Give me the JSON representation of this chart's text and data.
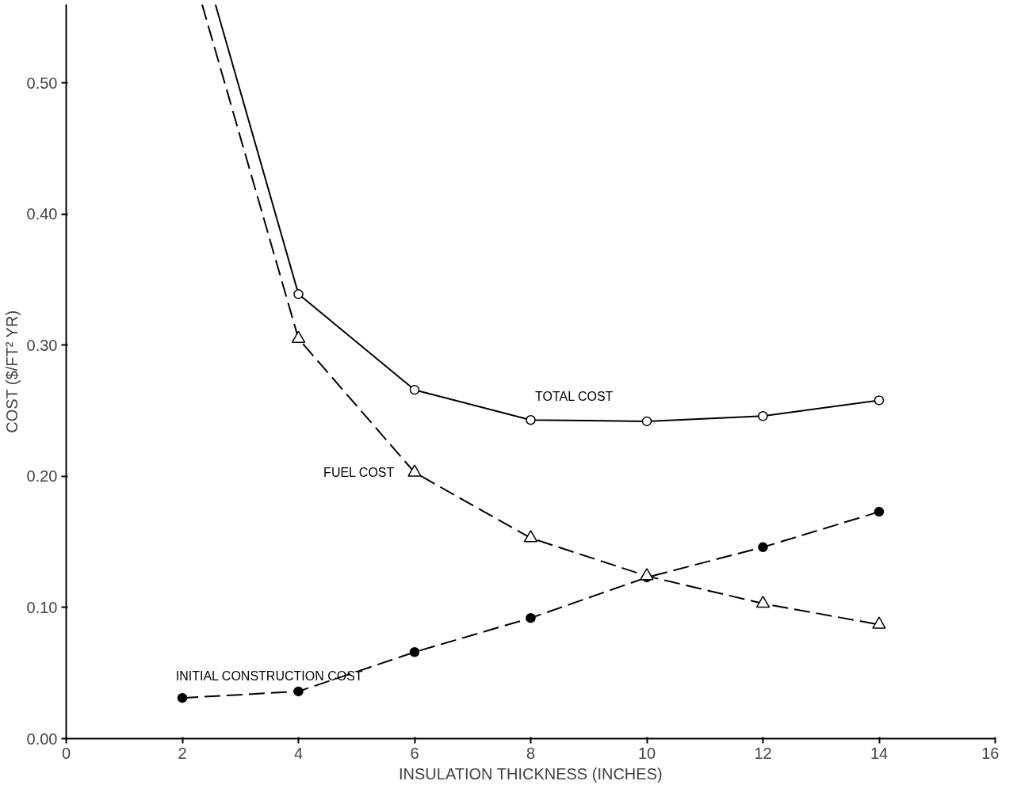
{
  "chart_data": {
    "type": "line",
    "xlabel": "INSULATION THICKNESS (INCHES)",
    "ylabel": "COST ($/FT² YR)",
    "xlim": [
      0,
      16
    ],
    "ylim": [
      0,
      0.56
    ],
    "xticks": [
      0,
      2,
      4,
      6,
      8,
      10,
      12,
      14,
      16
    ],
    "yticks": [
      {
        "value": 0,
        "label": "0.00"
      },
      {
        "value": 0.1,
        "label": "0.10"
      },
      {
        "value": 0.2,
        "label": "0.20"
      },
      {
        "value": 0.3,
        "label": "0.30"
      },
      {
        "value": 0.4,
        "label": "0.40"
      },
      {
        "value": 0.5,
        "label": "0.50"
      }
    ],
    "grid": false,
    "series": [
      {
        "name": "TOTAL COST",
        "color": "#000000",
        "line_style": "solid",
        "marker": "circle",
        "x": [
          2.57,
          4,
          6,
          8,
          10,
          12,
          14
        ],
        "values": [
          0.56,
          0.339,
          0.266,
          0.243,
          0.242,
          0.246,
          0.258
        ]
      },
      {
        "name": "FUEL COST",
        "color": "#000000",
        "line_style": "dashed",
        "marker": "triangle",
        "x": [
          2.34,
          4,
          6,
          8,
          10,
          12,
          14
        ],
        "values": [
          0.56,
          0.305,
          0.203,
          0.153,
          0.124,
          0.103,
          0.087
        ]
      },
      {
        "name": "INITIAL CONSTRUCTION COST",
        "color": "#000000",
        "line_style": "dashed",
        "marker": "circle",
        "x": [
          2,
          4,
          6,
          8,
          10,
          12,
          14
        ],
        "values": [
          0.031,
          0.036,
          0.066,
          0.092,
          0.123,
          0.146,
          0.173
        ]
      }
    ]
  }
}
